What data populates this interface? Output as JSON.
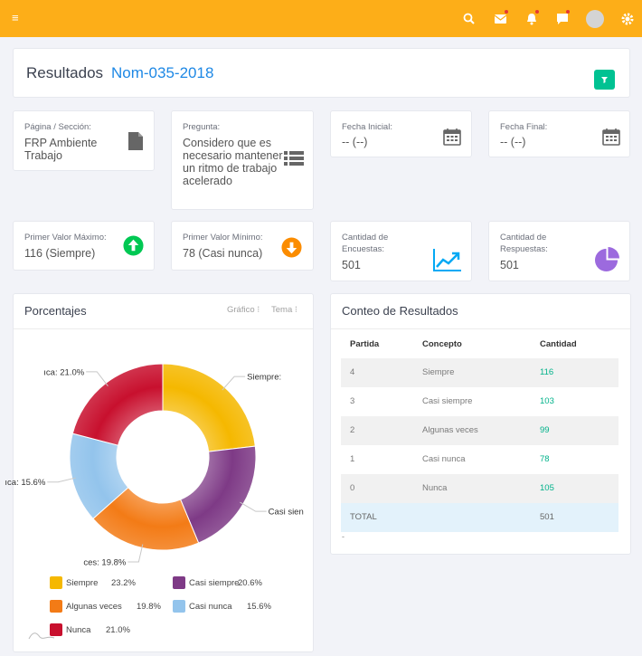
{
  "topbar": {
    "menu_icon": "hamburger-icon",
    "accent": "#fdae18"
  },
  "header": {
    "title": "Resultados",
    "subtitle": "Nom-035-2018"
  },
  "info_cards": [
    {
      "label": "Página / Sección:",
      "value": "FRP Ambiente Trabajo",
      "icon": "document-icon"
    },
    {
      "label": "Pregunta:",
      "value": "Considero que es necesario mantener un ritmo de trabajo acelerado",
      "icon": "list-icon"
    },
    {
      "label": "Fecha Inicial:",
      "value": "-- (--)",
      "icon": "calendar-icon"
    },
    {
      "label": "Fecha Final:",
      "value": "-- (--)",
      "icon": "calendar-icon"
    }
  ],
  "stats": [
    {
      "label": "Primer Valor Máximo:",
      "value": "116 (Siempre)",
      "icon": "arrow-up-circle-icon",
      "color": "#00c853"
    },
    {
      "label": "Primer Valor Mínimo:",
      "value": "78 (Casi nunca)",
      "icon": "arrow-down-circle-icon",
      "color": "#fb8c00"
    },
    {
      "label": "Cantidad de Encuestas:",
      "value": "501",
      "icon": "trend-chart-icon",
      "color": "#03a9f4"
    },
    {
      "label": "Cantidad de Respuestas:",
      "value": "501",
      "icon": "pie-chart-icon",
      "color": "#9c6ade"
    }
  ],
  "percent_panel": {
    "title": "Porcentajes",
    "menu_chart": "Gráfico ⁝",
    "menu_theme": "Tema ⁝"
  },
  "chart_data": {
    "type": "pie",
    "categories": [
      "Siempre",
      "Casi siempre",
      "Algunas veces",
      "Casi nunca",
      "Nunca"
    ],
    "values": [
      23.2,
      20.6,
      19.8,
      15.6,
      21.0
    ],
    "colors": [
      "#f5b800",
      "#7e3a86",
      "#f37b16",
      "#93c4ec",
      "#c8102e"
    ],
    "data_labels": [
      "Siempre:",
      "Casi sien",
      "ces: 19.8%",
      "ıca: 15.6%",
      "ıca: 21.0%"
    ],
    "legend": [
      {
        "name": "Siempre",
        "pct": "23.2%"
      },
      {
        "name": "Casi siempre",
        "pct": "20.6%"
      },
      {
        "name": "Algunas veces",
        "pct": "19.8%"
      },
      {
        "name": "Casi nunca",
        "pct": "15.6%"
      },
      {
        "name": "Nunca",
        "pct": "21.0%"
      }
    ]
  },
  "results_panel": {
    "title": "Conteo de Resultados",
    "columns": [
      "Partida",
      "Concepto",
      "Cantidad"
    ],
    "rows": [
      {
        "partida": "4",
        "concepto": "Siempre",
        "cantidad": "116"
      },
      {
        "partida": "3",
        "concepto": "Casi siempre",
        "cantidad": "103"
      },
      {
        "partida": "2",
        "concepto": "Algunas veces",
        "cantidad": "99"
      },
      {
        "partida": "1",
        "concepto": "Casi nunca",
        "cantidad": "78"
      },
      {
        "partida": "0",
        "concepto": "Nunca",
        "cantidad": "105"
      }
    ],
    "total_label": "TOTAL",
    "total_value": "501",
    "footnote": "-"
  }
}
